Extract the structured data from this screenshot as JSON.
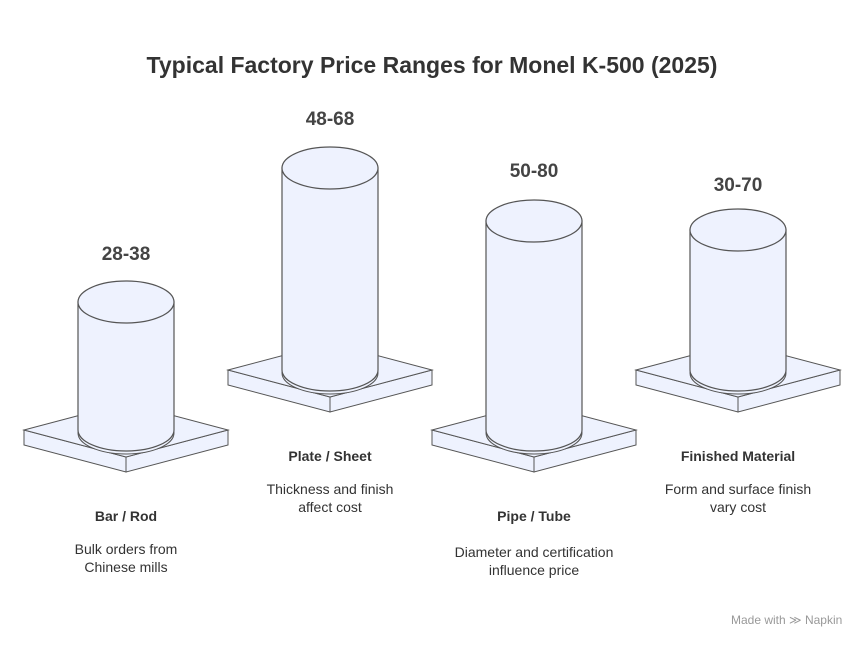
{
  "title": "Typical Factory Price Ranges for Monel K-500 (2025)",
  "items": [
    {
      "value": "28-38",
      "category": "Bar / Rod",
      "description": "Bulk orders from Chinese mills"
    },
    {
      "value": "48-68",
      "category": "Plate / Sheet",
      "description": "Thickness and finish affect cost"
    },
    {
      "value": "50-80",
      "category": "Pipe / Tube",
      "description": "Diameter and certification influence price"
    },
    {
      "value": "30-70",
      "category": "Finished Material",
      "description": "Form and surface finish vary cost"
    }
  ],
  "colors": {
    "fill": "#eef2fe",
    "stroke": "#555555",
    "text": "#333333"
  },
  "credit": {
    "text": "Made with",
    "brand": "Napkin",
    "icon": "napkin-logo-icon"
  }
}
